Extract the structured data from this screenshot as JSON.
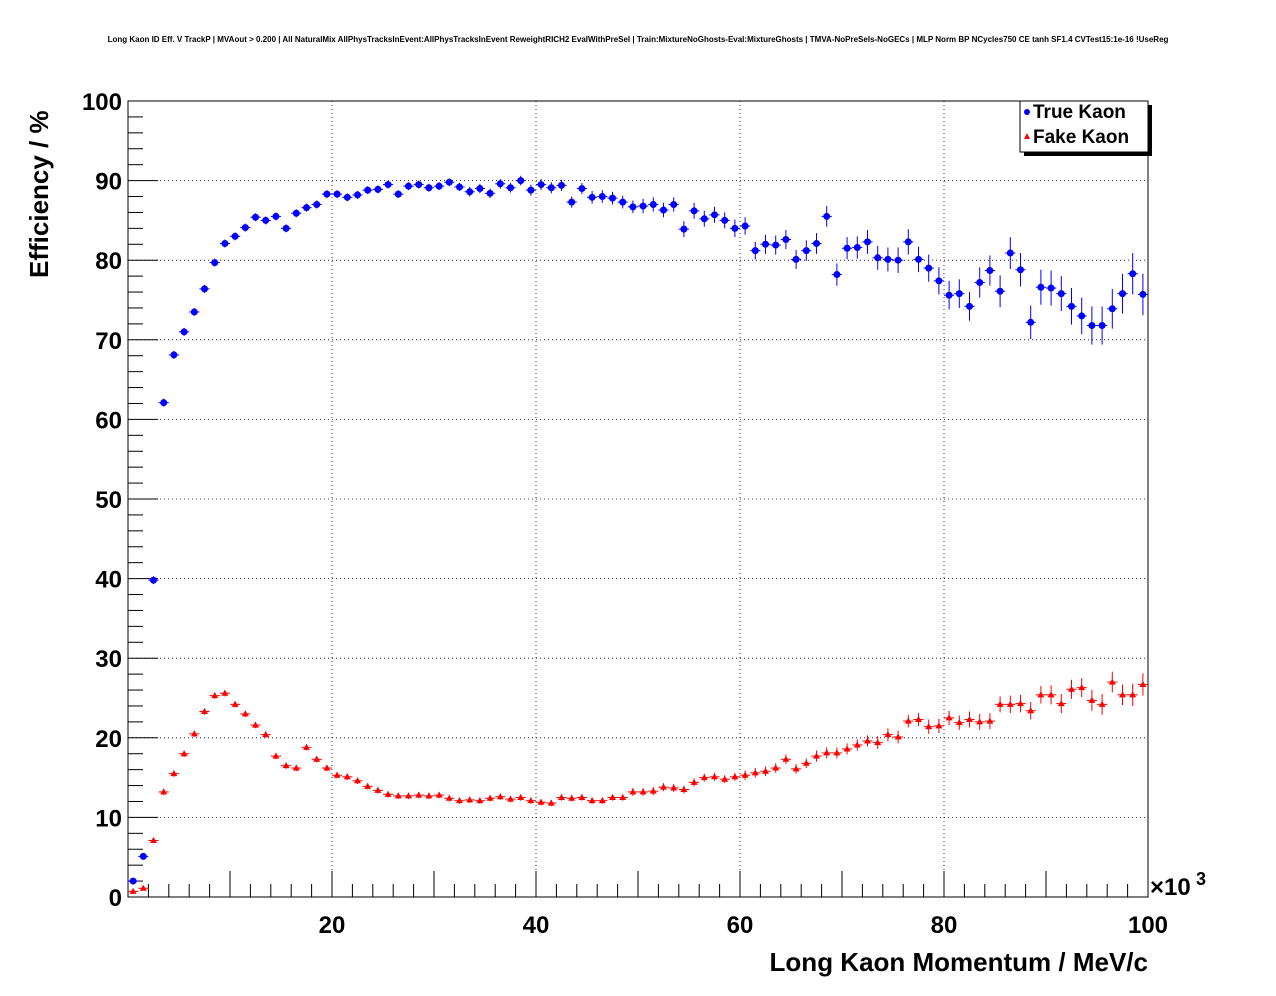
{
  "chart_data": {
    "type": "scatter",
    "title": "Long Kaon ID Eff. V TrackP | MVAout > 0.200 | All NaturalMix AllPhysTracksInEvent:AllPhysTracksInEvent ReweightRICH2 EvalWithPreSel | Train:MixtureNoGhosts-Eval:MixtureGhosts | TMVA-NoPreSels-NoGECs | MLP Norm BP NCycles750 CE tanh SF1.4 CVTest15:1e-16 !UseReg",
    "xlabel": "Long Kaon Momentum / MeV/c",
    "ylabel": "Efficiency / %",
    "x_multiplier_label": "×10",
    "x_multiplier_exp": "3",
    "xlim": [
      0,
      100
    ],
    "ylim": [
      0,
      100
    ],
    "x_ticks": [
      20,
      40,
      60,
      80,
      100
    ],
    "y_ticks": [
      0,
      10,
      20,
      30,
      40,
      50,
      60,
      70,
      80,
      90,
      100
    ],
    "grid": true,
    "legend_position": "top-right",
    "series": [
      {
        "name": "True Kaon",
        "color": "#0000ff",
        "marker": "circle",
        "x": [
          0.5,
          1.5,
          2.5,
          3.5,
          4.5,
          5.5,
          6.5,
          7.5,
          8.5,
          9.5,
          10.5,
          11.5,
          12.5,
          13.5,
          14.5,
          15.5,
          16.5,
          17.5,
          18.5,
          19.5,
          20.5,
          21.5,
          22.5,
          23.5,
          24.5,
          25.5,
          26.5,
          27.5,
          28.5,
          29.5,
          30.5,
          31.5,
          32.5,
          33.5,
          34.5,
          35.5,
          36.5,
          37.5,
          38.5,
          39.5,
          40.5,
          41.5,
          42.5,
          43.5,
          44.5,
          45.5,
          46.5,
          47.5,
          48.5,
          49.5,
          50.5,
          51.5,
          52.5,
          53.5,
          54.5,
          55.5,
          56.5,
          57.5,
          58.5,
          59.5,
          60.5,
          61.5,
          62.5,
          63.5,
          64.5,
          65.5,
          66.5,
          67.5,
          68.5,
          69.5,
          70.5,
          71.5,
          72.5,
          73.5,
          74.5,
          75.5,
          76.5,
          77.5,
          78.5,
          79.5,
          80.5,
          81.5,
          82.5,
          83.5,
          84.5,
          85.5,
          86.5,
          87.5,
          88.5,
          89.5,
          90.5,
          91.5,
          92.5,
          93.5,
          94.5,
          95.5,
          96.5,
          97.5,
          98.5,
          99.5
        ],
        "y": [
          2.0,
          5.1,
          39.8,
          62.1,
          68.1,
          71.0,
          73.5,
          76.4,
          79.7,
          82.1,
          83.0,
          84.1,
          85.4,
          85.0,
          85.5,
          84.0,
          85.9,
          86.6,
          87.0,
          88.3,
          88.3,
          87.9,
          88.2,
          88.8,
          88.9,
          89.5,
          88.3,
          89.3,
          89.5,
          89.1,
          89.3,
          89.8,
          89.2,
          88.6,
          89.0,
          88.4,
          89.6,
          89.1,
          90.0,
          88.8,
          89.5,
          89.1,
          89.4,
          87.3,
          89.0,
          87.9,
          88.0,
          87.8,
          87.3,
          86.7,
          86.8,
          87.0,
          86.3,
          87.0,
          83.9,
          86.2,
          85.2,
          85.7,
          85.0,
          84.0,
          84.3,
          81.2,
          82.0,
          81.9,
          82.6,
          80.1,
          81.2,
          82.1,
          85.5,
          78.2,
          81.5,
          81.6,
          82.3,
          80.3,
          80.1,
          80.0,
          82.3,
          80.1,
          79.0,
          77.4,
          75.6,
          75.8,
          74.2,
          77.2,
          78.7,
          76.1,
          80.9,
          78.8,
          72.2,
          76.6,
          76.5,
          75.8,
          74.2,
          73.0,
          71.8,
          71.8,
          73.9,
          75.8,
          78.3,
          75.7
        ],
        "yerr": [
          0.3,
          0.4,
          0.5,
          0.5,
          0.5,
          0.5,
          0.5,
          0.5,
          0.5,
          0.5,
          0.5,
          0.5,
          0.5,
          0.5,
          0.5,
          0.5,
          0.5,
          0.5,
          0.5,
          0.5,
          0.5,
          0.5,
          0.5,
          0.5,
          0.5,
          0.5,
          0.5,
          0.5,
          0.5,
          0.5,
          0.5,
          0.5,
          0.5,
          0.6,
          0.6,
          0.6,
          0.6,
          0.6,
          0.6,
          0.7,
          0.7,
          0.7,
          0.7,
          0.7,
          0.7,
          0.8,
          0.8,
          0.8,
          0.8,
          0.8,
          0.9,
          0.9,
          0.9,
          0.9,
          1.0,
          1.0,
          1.0,
          1.0,
          1.0,
          1.1,
          1.1,
          1.1,
          1.2,
          1.2,
          1.2,
          1.2,
          1.3,
          1.3,
          1.3,
          1.4,
          1.4,
          1.4,
          1.5,
          1.5,
          1.5,
          1.6,
          1.6,
          1.6,
          1.7,
          1.7,
          1.8,
          1.8,
          1.8,
          1.9,
          1.9,
          2.0,
          2.0,
          2.1,
          2.1,
          2.2,
          2.2,
          2.2,
          2.3,
          2.3,
          2.4,
          2.4,
          2.5,
          2.5,
          2.6,
          2.6
        ]
      },
      {
        "name": "Fake Kaon",
        "color": "#ff0000",
        "marker": "triangle",
        "x": [
          0.5,
          1.5,
          2.5,
          3.5,
          4.5,
          5.5,
          6.5,
          7.5,
          8.5,
          9.5,
          10.5,
          11.5,
          12.5,
          13.5,
          14.5,
          15.5,
          16.5,
          17.5,
          18.5,
          19.5,
          20.5,
          21.5,
          22.5,
          23.5,
          24.5,
          25.5,
          26.5,
          27.5,
          28.5,
          29.5,
          30.5,
          31.5,
          32.5,
          33.5,
          34.5,
          35.5,
          36.5,
          37.5,
          38.5,
          39.5,
          40.5,
          41.5,
          42.5,
          43.5,
          44.5,
          45.5,
          46.5,
          47.5,
          48.5,
          49.5,
          50.5,
          51.5,
          52.5,
          53.5,
          54.5,
          55.5,
          56.5,
          57.5,
          58.5,
          59.5,
          60.5,
          61.5,
          62.5,
          63.5,
          64.5,
          65.5,
          66.5,
          67.5,
          68.5,
          69.5,
          70.5,
          71.5,
          72.5,
          73.5,
          74.5,
          75.5,
          76.5,
          77.5,
          78.5,
          79.5,
          80.5,
          81.5,
          82.5,
          83.5,
          84.5,
          85.5,
          86.5,
          87.5,
          88.5,
          89.5,
          90.5,
          91.5,
          92.5,
          93.5,
          94.5,
          95.5,
          96.5,
          97.5,
          98.5,
          99.5
        ],
        "y": [
          0.7,
          1.1,
          7.1,
          13.2,
          15.5,
          18.0,
          20.5,
          23.3,
          25.3,
          25.6,
          24.2,
          23.0,
          21.6,
          20.4,
          17.7,
          16.5,
          16.2,
          18.8,
          17.3,
          16.2,
          15.3,
          15.1,
          14.6,
          13.9,
          13.4,
          12.9,
          12.7,
          12.7,
          12.8,
          12.7,
          12.8,
          12.4,
          12.1,
          12.2,
          12.1,
          12.4,
          12.6,
          12.3,
          12.5,
          12.1,
          11.9,
          11.8,
          12.5,
          12.4,
          12.5,
          12.1,
          12.1,
          12.5,
          12.5,
          13.2,
          13.2,
          13.3,
          13.8,
          13.7,
          13.5,
          14.4,
          15.0,
          15.1,
          14.8,
          15.1,
          15.3,
          15.6,
          15.8,
          16.2,
          17.3,
          16.1,
          16.8,
          17.7,
          18.1,
          18.1,
          18.6,
          19.1,
          19.6,
          19.4,
          20.4,
          20.1,
          22.1,
          22.3,
          21.4,
          21.5,
          22.5,
          21.9,
          22.3,
          22.0,
          22.1,
          24.2,
          24.2,
          24.3,
          23.4,
          25.4,
          25.4,
          24.3,
          26.1,
          26.3,
          24.7,
          24.2,
          27.0,
          25.4,
          25.4,
          26.7
        ],
        "yerr": [
          0.1,
          0.2,
          0.3,
          0.4,
          0.4,
          0.4,
          0.4,
          0.4,
          0.4,
          0.4,
          0.4,
          0.4,
          0.4,
          0.4,
          0.4,
          0.4,
          0.4,
          0.4,
          0.4,
          0.4,
          0.4,
          0.4,
          0.4,
          0.4,
          0.4,
          0.4,
          0.4,
          0.4,
          0.4,
          0.4,
          0.4,
          0.4,
          0.4,
          0.4,
          0.4,
          0.4,
          0.4,
          0.4,
          0.4,
          0.4,
          0.4,
          0.4,
          0.4,
          0.4,
          0.4,
          0.4,
          0.4,
          0.4,
          0.4,
          0.5,
          0.5,
          0.5,
          0.5,
          0.5,
          0.5,
          0.5,
          0.5,
          0.5,
          0.5,
          0.5,
          0.6,
          0.6,
          0.6,
          0.6,
          0.6,
          0.6,
          0.6,
          0.7,
          0.7,
          0.7,
          0.7,
          0.7,
          0.7,
          0.8,
          0.8,
          0.8,
          0.8,
          0.8,
          0.9,
          0.9,
          0.9,
          0.9,
          1.0,
          1.0,
          1.0,
          1.0,
          1.1,
          1.1,
          1.1,
          1.1,
          1.2,
          1.2,
          1.2,
          1.2,
          1.3,
          1.3,
          1.3,
          1.3,
          1.4,
          1.4
        ]
      }
    ]
  }
}
